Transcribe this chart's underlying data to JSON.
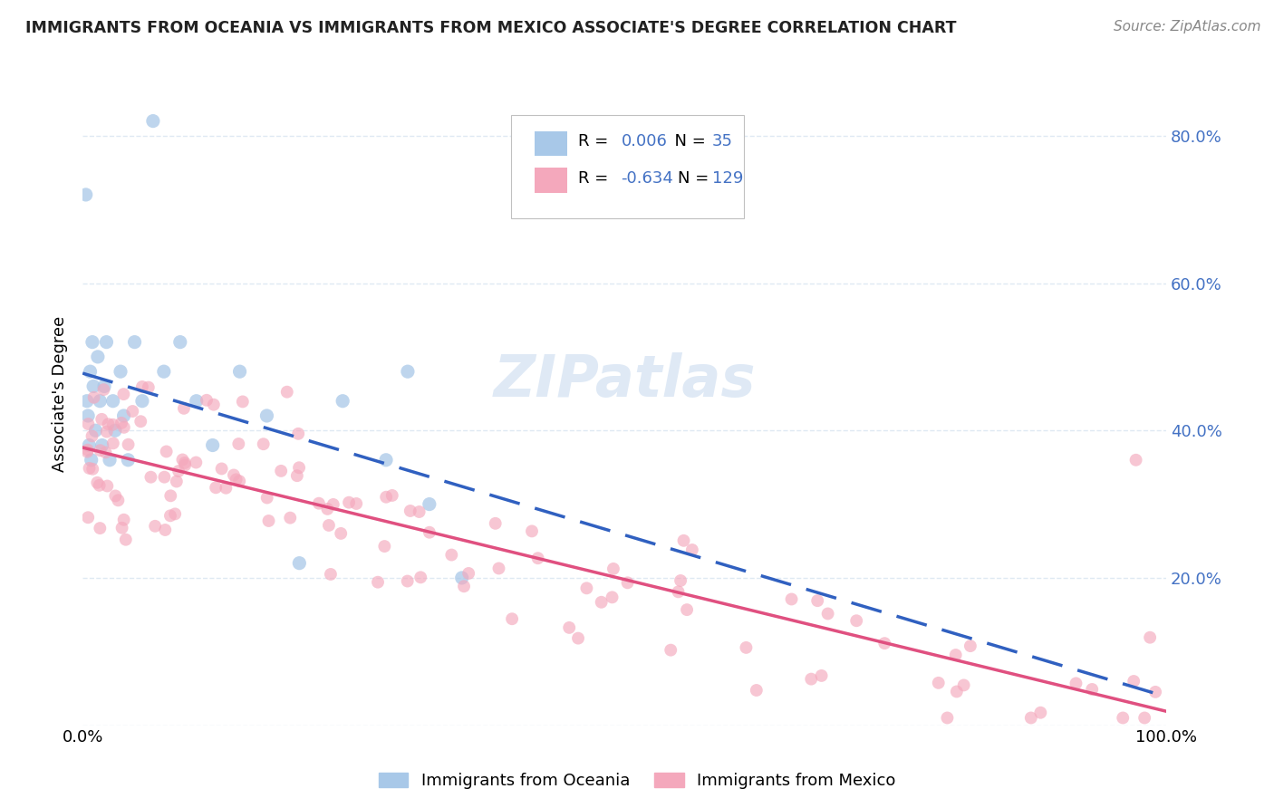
{
  "title": "IMMIGRANTS FROM OCEANIA VS IMMIGRANTS FROM MEXICO ASSOCIATE'S DEGREE CORRELATION CHART",
  "source": "Source: ZipAtlas.com",
  "ylabel": "Associate's Degree",
  "xlim": [
    0.0,
    1.0
  ],
  "ylim": [
    0.0,
    0.9
  ],
  "legend_oceania_R": "0.006",
  "legend_oceania_N": "35",
  "legend_mexico_R": "-0.634",
  "legend_mexico_N": "129",
  "oceania_color": "#a8c8e8",
  "mexico_color": "#f4a8bc",
  "oceania_line_color": "#3060c0",
  "mexico_line_color": "#e05080",
  "watermark": "ZIPatlas",
  "background_color": "#ffffff",
  "grid_color": "#d8e4f0",
  "text_color": "#4472c4",
  "legend_text_color": "#4472c4",
  "title_color": "#222222",
  "source_color": "#888888"
}
